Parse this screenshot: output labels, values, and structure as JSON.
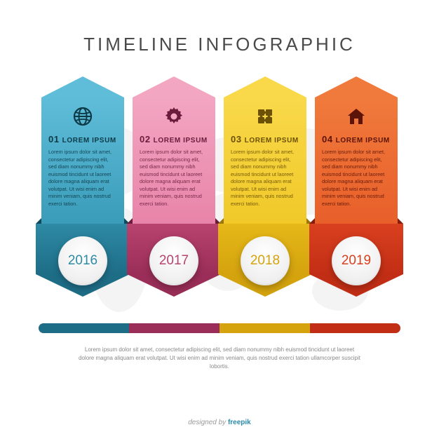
{
  "title": "TIMELINE INFOGRAPHIC",
  "background_color": "#ffffff",
  "map_color": "#cccccc",
  "columns": [
    {
      "number": "01",
      "heading": "LOREM IPSUM",
      "text": "Lorem ipsum dolor sit amet, consectetur adipiscing elit, sed diam nonummy nibh euismod tincidunt ut laoreet dolore magna aliquam erat volutpat. Ut wisi enim ad minim veniam, quis nostrud exerci tation.",
      "year": "2016",
      "icon": "globe",
      "top_color": "#5fbdd9",
      "top_color2": "#3a9cb9",
      "bottom_color": "#2e8aa5",
      "bottom_color2": "#1e6d87",
      "fold_color": "#114a5c",
      "text_color": "#0d3a47",
      "year_color": "#2e8aa5"
    },
    {
      "number": "02",
      "heading": "LOREM IPSUM",
      "text": "Lorem ipsum dolor sit amet, consectetur adipiscing elit, sed diam nonummy nibh euismod tincidunt ut laoreet dolore magna aliquam erat volutpat. Ut wisi enim ad minim veniam, quis nostrud exerci tation.",
      "year": "2017",
      "icon": "gear",
      "top_color": "#f3a6c1",
      "top_color2": "#e884a8",
      "bottom_color": "#b8436f",
      "bottom_color2": "#9a2e58",
      "fold_color": "#6b1c3c",
      "text_color": "#6b1c3c",
      "year_color": "#b8436f"
    },
    {
      "number": "03",
      "heading": "LOREM IPSUM",
      "text": "Lorem ipsum dolor sit amet, consectetur adipiscing elit, sed diam nonummy nibh euismod tincidunt ut laoreet dolore magna aliquam erat volutpat. Ut wisi enim ad minim veniam, quis nostrud exerci tation.",
      "year": "2018",
      "icon": "puzzle",
      "top_color": "#f9d94a",
      "top_color2": "#f0c828",
      "bottom_color": "#e6b818",
      "bottom_color2": "#d4a30e",
      "fold_color": "#9c7708",
      "text_color": "#6b5006",
      "year_color": "#d4a30e"
    },
    {
      "number": "04",
      "heading": "LOREM IPSUM",
      "text": "Lorem ipsum dolor sit amet, consectetur adipiscing elit, sed diam nonummy nibh euismod tincidunt ut laoreet dolore magna aliquam erat volutpat. Ut wisi enim ad minim veniam, quis nostrud exerci tation.",
      "year": "2019",
      "icon": "house",
      "top_color": "#f07a3c",
      "top_color2": "#e85f2a",
      "bottom_color": "#d9401f",
      "bottom_color2": "#c22e15",
      "fold_color": "#861d0c",
      "text_color": "#5c1308",
      "year_color": "#d9401f"
    }
  ],
  "timeline_bar_colors": [
    "#1e6d87",
    "#9a2e58",
    "#d4a30e",
    "#c22e15"
  ],
  "footer_text": "Lorem ipsum dolor sit amet, consectetur adipiscing elit, sed diam nonummy nibh euismod tincidunt ut laoreet dolore magna aliquam erat volutpat. Ut wisi enim ad minim veniam, quis nostrud exerci tation ullamcorper suscipit lobortis.",
  "credit_prefix": "designed by ",
  "credit_brand": "freepik"
}
